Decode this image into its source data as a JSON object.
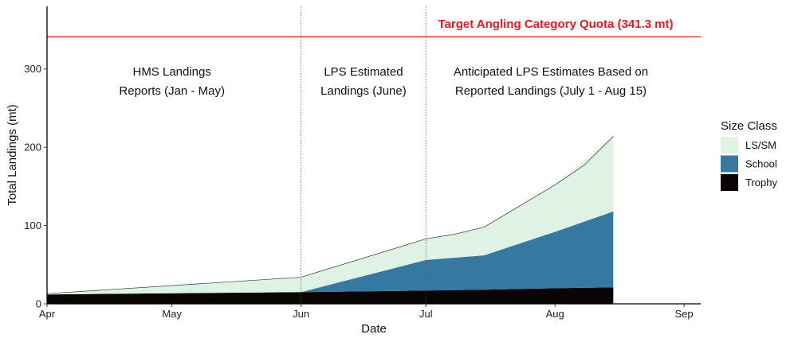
{
  "chart_data": {
    "type": "area",
    "stacked": true,
    "xlabel": "Date",
    "ylabel": "Total Landings (mt)",
    "x_ticks": [
      {
        "label": "Apr",
        "date": "2024-04-01"
      },
      {
        "label": "May",
        "date": "2024-05-01"
      },
      {
        "label": "Jun",
        "date": "2024-06-01"
      },
      {
        "label": "Jul",
        "date": "2024-07-01"
      },
      {
        "label": "Aug",
        "date": "2024-08-01"
      },
      {
        "label": "Sep",
        "date": "2024-09-01"
      }
    ],
    "y_ticks": [
      0,
      100,
      200,
      300
    ],
    "xlim": [
      "2024-04-01",
      "2024-09-05"
    ],
    "ylim": [
      0,
      380
    ],
    "x": [
      "2024-04-01",
      "2024-06-01",
      "2024-07-01",
      "2024-07-15",
      "2024-08-01",
      "2024-08-15"
    ],
    "series": [
      {
        "name": "Trophy",
        "color": "#0a0505",
        "values": [
          12,
          15,
          17,
          18,
          20,
          21
        ]
      },
      {
        "name": "School",
        "color": "#3579a2",
        "values": [
          0,
          0,
          39,
          44,
          72,
          97
        ]
      },
      {
        "name": "LS/SM",
        "color": "#dff3e4",
        "values": [
          1,
          19,
          27,
          36,
          60,
          96
        ]
      }
    ],
    "outline_x": [
      "2024-04-01",
      "2024-06-01",
      "2024-07-01",
      "2024-07-08",
      "2024-07-15",
      "2024-08-01",
      "2024-08-08",
      "2024-08-15"
    ],
    "outline_y": [
      13,
      34,
      83,
      89,
      98,
      152,
      177,
      214
    ],
    "quota": {
      "value": 341.3,
      "label": "Target Angling Category Quota (341.3 mt)",
      "color": "#e41a1c"
    },
    "phase_lines": [
      "2024-06-01",
      "2024-07-01"
    ],
    "annotations": [
      {
        "lines": [
          "HMS Landings",
          "Reports (Jan - May)"
        ],
        "center_date": "2024-05-01"
      },
      {
        "lines": [
          "LPS Estimated",
          "Landings (June)"
        ],
        "center_date": "2024-06-16"
      },
      {
        "lines": [
          "Anticipated LPS Estimates Based on",
          "Reported Landings (July 1 - Aug 15)"
        ],
        "center_date": "2024-07-31"
      }
    ],
    "legend": {
      "title": "Size Class",
      "position": "right",
      "entries": [
        {
          "label": "LS/SM",
          "color": "#dff3e4"
        },
        {
          "label": "School",
          "color": "#3579a2"
        },
        {
          "label": "Trophy",
          "color": "#0a0505"
        }
      ]
    },
    "grid": false
  }
}
